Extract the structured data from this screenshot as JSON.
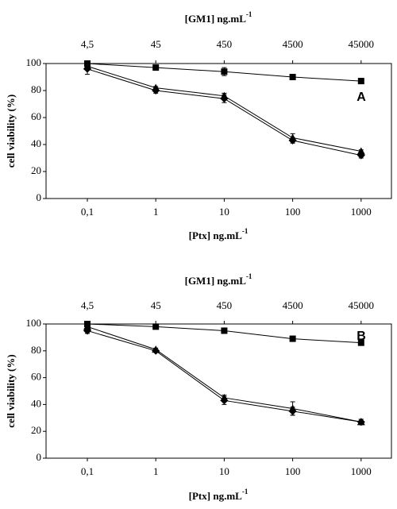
{
  "chart_data": [
    {
      "type": "line",
      "panel": "A",
      "x2_label": "[GM1] ng.mL",
      "x2_label_exp": "-1",
      "x_label": "[Ptx] ng.mL",
      "x_label_exp": "-1",
      "y_label": "cell viability (%)",
      "categories": [
        "0,1",
        "1",
        "10",
        "100",
        "1000"
      ],
      "x2_categories": [
        "4,5",
        "45",
        "450",
        "4500",
        "45000"
      ],
      "ylim": [
        0,
        100
      ],
      "yticks": [
        0,
        20,
        40,
        60,
        80,
        100
      ],
      "series": [
        {
          "color": "#000000",
          "marker": "square",
          "values": [
            100,
            97,
            94,
            90,
            87
          ],
          "errors": [
            1,
            1,
            3,
            2,
            2
          ]
        },
        {
          "color": "#000000",
          "marker": "diamond",
          "values": [
            96,
            80,
            74,
            43,
            32
          ],
          "errors": [
            4,
            2,
            3,
            2,
            2
          ]
        },
        {
          "color": "#000000",
          "marker": "triangle",
          "values": [
            98,
            82,
            76,
            45,
            35
          ],
          "errors": [
            2,
            1,
            2,
            3,
            1
          ]
        }
      ]
    },
    {
      "type": "line",
      "panel": "B",
      "x2_label": "[GM1] ng.mL",
      "x2_label_exp": "-1",
      "x_label": "[Ptx] ng.mL",
      "x_label_exp": "-1",
      "y_label": "cell viability (%)",
      "categories": [
        "0,1",
        "1",
        "10",
        "100",
        "1000"
      ],
      "x2_categories": [
        "4,5",
        "45",
        "450",
        "4500",
        "45000"
      ],
      "ylim": [
        0,
        100
      ],
      "yticks": [
        0,
        20,
        40,
        60,
        80,
        100
      ],
      "series": [
        {
          "color": "#000000",
          "marker": "square",
          "values": [
            100,
            98,
            95,
            89,
            86
          ],
          "errors": [
            1,
            1,
            2,
            2,
            2
          ]
        },
        {
          "color": "#000000",
          "marker": "diamond",
          "values": [
            95,
            80,
            43,
            35,
            27
          ],
          "errors": [
            2,
            1,
            3,
            3,
            2
          ]
        },
        {
          "color": "#000000",
          "marker": "triangle",
          "values": [
            98,
            81,
            45,
            37,
            27
          ],
          "errors": [
            2,
            1,
            2,
            5,
            2
          ]
        }
      ]
    }
  ]
}
